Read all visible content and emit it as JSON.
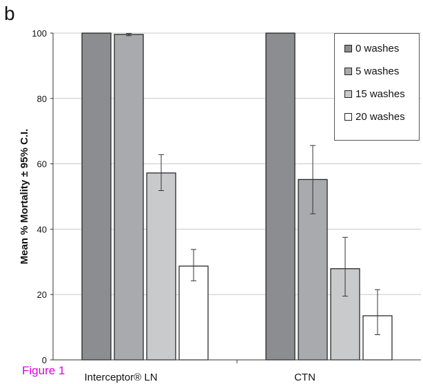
{
  "panel_letter": "b",
  "figure_label": "Figure 1",
  "colors": {
    "series": [
      "#8c8d90",
      "#a9aaad",
      "#c9cacc",
      "#ffffff"
    ],
    "figure_label": "#e100e1",
    "grid": "#c8c8c8"
  },
  "chart_data": {
    "type": "bar",
    "title": "",
    "xlabel": "",
    "ylabel": "Mean % Mortality ± 95% C.I.",
    "ylim": [
      0,
      100
    ],
    "yticks": [
      0,
      20,
      40,
      60,
      80,
      100
    ],
    "categories": [
      "Interceptor® LN",
      "CTN"
    ],
    "grid": true,
    "legend_position": "top-right",
    "series": [
      {
        "name": "0 washes",
        "values": [
          100,
          100
        ],
        "ci_low": [
          100,
          100
        ],
        "ci_high": [
          100,
          100
        ]
      },
      {
        "name": "5 washes",
        "values": [
          99.6,
          55.2
        ],
        "ci_low": [
          99.2,
          44.7
        ],
        "ci_high": [
          99.9,
          65.6
        ]
      },
      {
        "name": "15 washes",
        "values": [
          57.2,
          27.9
        ],
        "ci_low": [
          51.8,
          19.5
        ],
        "ci_high": [
          62.8,
          37.5
        ]
      },
      {
        "name": "20 washes",
        "values": [
          28.7,
          13.5
        ],
        "ci_low": [
          24.2,
          7.7
        ],
        "ci_high": [
          33.8,
          21.5
        ]
      }
    ]
  }
}
